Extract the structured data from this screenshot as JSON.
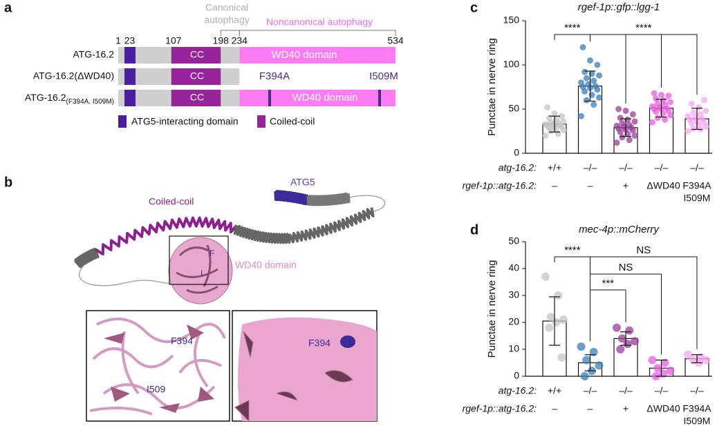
{
  "panel_a": {
    "label": "a",
    "canonical": [
      "Canonical",
      "autophagy"
    ],
    "noncanonical": "Noncanonical autophagy",
    "residues": [
      1,
      23,
      107,
      198,
      234,
      534
    ],
    "constructs": [
      {
        "name": "ATG-16.2"
      },
      {
        "name": "ATG-16.2(ΔWD40)"
      },
      {
        "name": "ATG-16.2",
        "subscript": "(F394A, I509M)"
      }
    ],
    "cc": "CC",
    "wd40": "WD40 domain",
    "mutations": [
      "F394A",
      "I509M"
    ],
    "legend": [
      "ATG5-interacting domain",
      "Coiled-coil"
    ]
  },
  "panel_b": {
    "label": "b",
    "atg5": "ATG5",
    "coiled_coil": "Coiled-coil",
    "wd40": "WD40 domain",
    "f": "F",
    "i": "I",
    "zoom_left": [
      "F394",
      "I509"
    ],
    "zoom_right": "F394"
  },
  "chart_data": [
    {
      "type": "bar",
      "label": "c",
      "title": "rgef-1p::gfp::lgg-1",
      "y_label": "Punctae in nerve ring",
      "ylim": [
        0,
        150
      ],
      "yticks": [
        0,
        50,
        100,
        150
      ],
      "row_labels": [
        "atg-16.2:",
        "rgef-1p::atg-16.2:"
      ],
      "categories": [
        "+/+",
        "–/–",
        "–/–",
        "–/–",
        "–/–"
      ],
      "transgene": [
        "–",
        "–",
        "+",
        "ΔWD40",
        [
          "F394A",
          "I509M"
        ]
      ],
      "colors": [
        "#c4c4c4",
        "#3a7fb8",
        "#9a3d96",
        "#e85ee0",
        "#f7a6f2"
      ],
      "values": [
        33,
        76,
        29,
        51,
        39
      ],
      "errors": [
        9,
        17,
        10,
        10,
        12
      ],
      "points": [
        [
          20,
          22,
          25,
          26,
          28,
          29,
          30,
          30,
          31,
          32,
          33,
          33,
          34,
          35,
          36,
          38,
          40,
          42,
          45,
          52
        ],
        [
          42,
          55,
          60,
          63,
          66,
          70,
          72,
          74,
          75,
          76,
          78,
          80,
          82,
          85,
          88,
          90,
          92,
          100,
          105,
          120
        ],
        [
          12,
          15,
          18,
          20,
          22,
          24,
          26,
          27,
          28,
          29,
          30,
          31,
          32,
          34,
          36,
          38,
          40,
          44,
          48,
          50
        ],
        [
          35,
          38,
          40,
          43,
          45,
          47,
          48,
          50,
          50,
          51,
          52,
          53,
          55,
          56,
          58,
          60,
          62,
          65,
          66,
          68
        ],
        [
          25,
          27,
          28,
          30,
          32,
          34,
          35,
          36,
          38,
          39,
          40,
          42,
          44,
          46,
          48,
          52,
          56,
          60
        ]
      ],
      "annotations": [
        "****",
        "****"
      ]
    },
    {
      "type": "bar",
      "label": "d",
      "title": "mec-4p::mCherry",
      "y_label": "Punctae in nerve ring",
      "ylim": [
        0,
        50
      ],
      "yticks": [
        0,
        10,
        20,
        30,
        40,
        50
      ],
      "row_labels": [
        "atg-16.2:",
        "rgef-1p::atg-16.2:"
      ],
      "categories": [
        "+/+",
        "–/–",
        "–/–",
        "–/–",
        "–/–"
      ],
      "transgene": [
        "–",
        "–",
        "+",
        "ΔWD40",
        [
          "F394A",
          "I509M"
        ]
      ],
      "colors": [
        "#c4c4c4",
        "#3a7fb8",
        "#9a3d96",
        "#e85ee0",
        "#f7a6f2"
      ],
      "values": [
        20.5,
        5,
        14,
        3,
        6.5
      ],
      "errors": [
        9,
        3,
        2.5,
        3,
        1.5
      ],
      "points": [
        [
          37,
          30,
          22,
          21,
          20,
          18,
          7
        ],
        [
          11,
          9,
          6,
          4,
          2,
          0
        ],
        [
          18,
          17,
          14,
          13,
          12,
          10
        ],
        [
          6,
          5,
          3,
          2,
          1,
          0
        ],
        [
          8,
          7,
          6,
          6,
          5
        ]
      ],
      "annotations": [
        "****",
        "***",
        "NS",
        "NS"
      ]
    }
  ]
}
